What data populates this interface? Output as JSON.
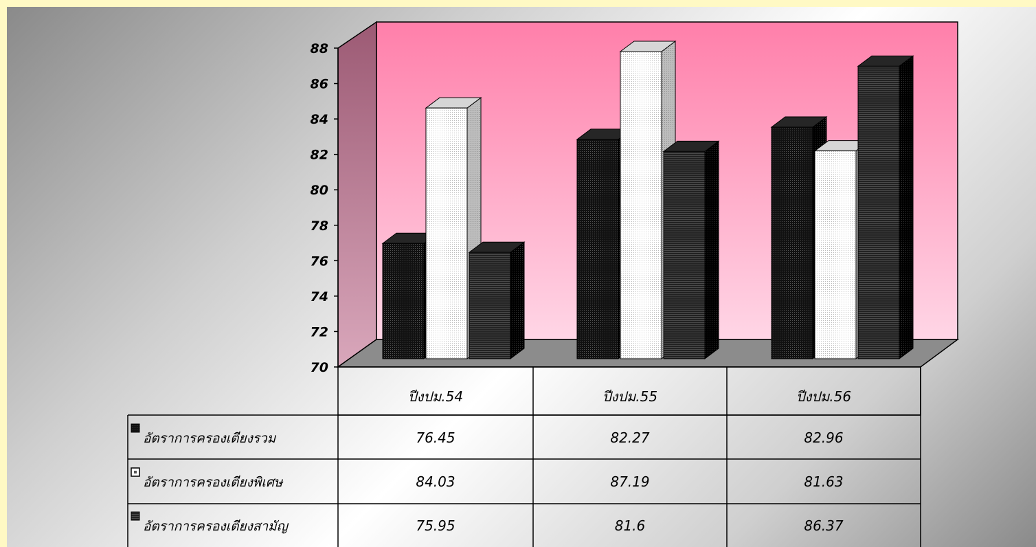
{
  "chart_data": {
    "type": "bar",
    "categories": [
      "ปีงปม.54",
      "ปีงปม.55",
      "ปีงปม.56"
    ],
    "series": [
      {
        "name": "อัตราการครองเตียงรวม",
        "values": [
          76.45,
          82.27,
          82.96
        ]
      },
      {
        "name": "อัตราการครองเตียงพิเศษ",
        "values": [
          84.03,
          87.19,
          81.63
        ]
      },
      {
        "name": "อัตราการครองเตียงสามัญ",
        "values": [
          75.95,
          81.6,
          86.37
        ]
      }
    ],
    "value_labels": [
      [
        "76.45",
        "82.27",
        "82.96"
      ],
      [
        "84.03",
        "87.19",
        "81.63"
      ],
      [
        "75.95",
        "81.6",
        "86.37"
      ]
    ],
    "yticks": [
      "70",
      "72",
      "74",
      "76",
      "78",
      "80",
      "82",
      "84",
      "86",
      "88"
    ],
    "ylim": [
      70,
      88
    ],
    "legend": "data-table-below",
    "grid": false,
    "colors": {
      "back_wall": "#ff85b0",
      "side_wall": "#a05f7a",
      "floor": "#8c8c8c",
      "series": [
        "#1a1a1a",
        "#ffffff",
        "#2e2e2e"
      ]
    }
  }
}
